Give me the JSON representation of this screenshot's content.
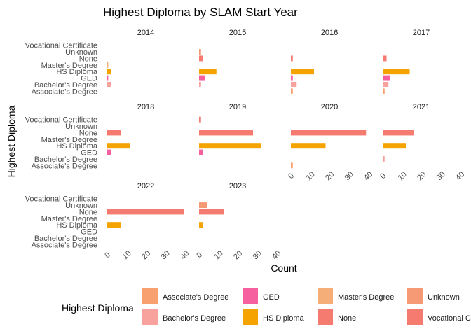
{
  "chart_data": {
    "type": "bar",
    "orientation": "horizontal",
    "faceted": true,
    "title": "Highest Diploma by SLAM Start Year",
    "xlabel": "Count",
    "ylabel": "Highest Diploma",
    "xlim": [
      0,
      40
    ],
    "x_ticks": [
      0,
      10,
      20,
      30,
      40
    ],
    "grid": false,
    "legend": {
      "title": "Highest Diploma",
      "position": "bottom",
      "items": [
        {
          "label": "Associate's Degree",
          "color": "#F8A070"
        },
        {
          "label": "Bachelor's Degree",
          "color": "#F8A29E"
        },
        {
          "label": "GED",
          "color": "#F7609E"
        },
        {
          "label": "HS Diploma",
          "color": "#F5A300"
        },
        {
          "label": "Master's Degree",
          "color": "#F5AE78"
        },
        {
          "label": "None",
          "color": "#F57A70"
        },
        {
          "label": "Unknown",
          "color": "#F59A74"
        },
        {
          "label": "Vocational Certificate",
          "color": "#F57A70"
        }
      ]
    },
    "categories": [
      "Vocational Certificate",
      "Unknown",
      "None",
      "Master's Degree",
      "HS Diploma",
      "GED",
      "Bachelor's Degree",
      "Associate's Degree"
    ],
    "panels": [
      {
        "year": "2014",
        "values": {
          "Vocational Certificate": 0,
          "Unknown": 0,
          "None": 0,
          "Master's Degree": 0.5,
          "HS Diploma": 2,
          "GED": 0.5,
          "Bachelor's Degree": 2,
          "Associate's Degree": 0
        }
      },
      {
        "year": "2015",
        "values": {
          "Vocational Certificate": 0,
          "Unknown": 1,
          "None": 2,
          "Master's Degree": 0,
          "HS Diploma": 9,
          "GED": 3,
          "Bachelor's Degree": 1,
          "Associate's Degree": 0
        }
      },
      {
        "year": "2016",
        "values": {
          "Vocational Certificate": 0,
          "Unknown": 0,
          "None": 1,
          "Master's Degree": 0,
          "HS Diploma": 12,
          "GED": 1,
          "Bachelor's Degree": 3,
          "Associate's Degree": 1
        }
      },
      {
        "year": "2017",
        "values": {
          "Vocational Certificate": 0,
          "Unknown": 0,
          "None": 2,
          "Master's Degree": 0,
          "HS Diploma": 14,
          "GED": 4,
          "Bachelor's Degree": 3,
          "Associate's Degree": 1
        }
      },
      {
        "year": "2018",
        "values": {
          "Vocational Certificate": 0,
          "Unknown": 0,
          "None": 7,
          "Master's Degree": 0,
          "HS Diploma": 12,
          "GED": 2,
          "Bachelor's Degree": 0,
          "Associate's Degree": 0
        }
      },
      {
        "year": "2019",
        "values": {
          "Vocational Certificate": 1,
          "Unknown": 0,
          "None": 28,
          "Master's Degree": 0,
          "HS Diploma": 32,
          "GED": 2,
          "Bachelor's Degree": 0,
          "Associate's Degree": 0
        }
      },
      {
        "year": "2020",
        "values": {
          "Vocational Certificate": 0,
          "Unknown": 0,
          "None": 39,
          "Master's Degree": 0,
          "HS Diploma": 18,
          "GED": 0,
          "Bachelor's Degree": 0,
          "Associate's Degree": 1
        }
      },
      {
        "year": "2021",
        "values": {
          "Vocational Certificate": 0,
          "Unknown": 0,
          "None": 16,
          "Master's Degree": 0,
          "HS Diploma": 12,
          "GED": 0,
          "Bachelor's Degree": 1,
          "Associate's Degree": 0
        }
      },
      {
        "year": "2022",
        "values": {
          "Vocational Certificate": 0,
          "Unknown": 0,
          "None": 40,
          "Master's Degree": 0,
          "HS Diploma": 7,
          "GED": 0,
          "Bachelor's Degree": 0,
          "Associate's Degree": 0
        }
      },
      {
        "year": "2023",
        "values": {
          "Vocational Certificate": 0,
          "Unknown": 4,
          "None": 13,
          "Master's Degree": 0,
          "HS Diploma": 2,
          "GED": 0,
          "Bachelor's Degree": 0,
          "Associate's Degree": 0
        }
      }
    ]
  }
}
